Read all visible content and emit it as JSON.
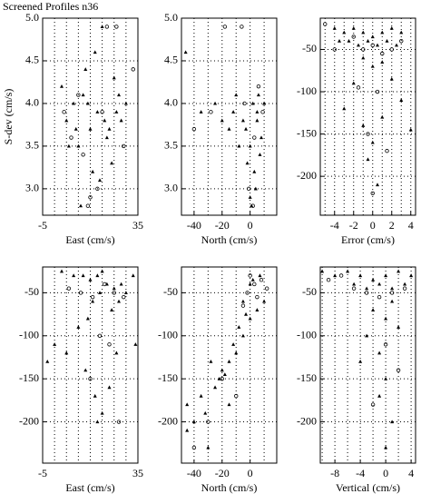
{
  "title": "Screened Profiles n36",
  "chart_data": [
    {
      "type": "scatter",
      "xlabel": "East (cm/s)",
      "ylabel": "S-dev (cm/s)",
      "xlim": [
        -5,
        35
      ],
      "ylim": [
        2.69,
        5.0
      ],
      "xticks": [
        -5,
        35
      ],
      "yticks": [
        {
          "value": 3,
          "label": "3.0"
        },
        {
          "value": 3.5,
          "label": "3.5"
        },
        {
          "value": 4,
          "label": "4.0"
        },
        {
          "value": 4.5,
          "label": "4.5"
        },
        {
          "value": 5,
          "label": "5.0"
        }
      ],
      "xgrid": [
        0,
        5,
        10,
        15,
        20,
        25,
        30
      ],
      "series": [
        {
          "marker": "triangle",
          "color": "#000000",
          "x": [
            3,
            5,
            8,
            10,
            12,
            15,
            18,
            20,
            22,
            25,
            28,
            6,
            9,
            14,
            17,
            21,
            24,
            27,
            30,
            11,
            16,
            19,
            13,
            23,
            26
          ],
          "values": [
            4.2,
            3.8,
            4.0,
            3.5,
            4.1,
            3.7,
            3.9,
            4.9,
            3.6,
            4.3,
            3.8,
            3.5,
            3.7,
            4.0,
            4.6,
            3.8,
            3.3,
            4.1,
            4.0,
            2.8,
            3.2,
            3.1,
            4.4,
            3.7,
            3.9
          ]
        },
        {
          "marker": "circle",
          "color": "#000000",
          "x": [
            4,
            7,
            12,
            15,
            18,
            22,
            26,
            29,
            33,
            20,
            10,
            14
          ],
          "values": [
            3.9,
            3.6,
            3.4,
            2.9,
            3.0,
            4.9,
            4.9,
            3.5,
            4.4,
            3.9,
            4.1,
            2.8
          ]
        }
      ]
    },
    {
      "type": "scatter",
      "xlabel": "North (cm/s)",
      "xlim": [
        -49,
        19
      ],
      "ylim": [
        2.69,
        5.0
      ],
      "xticks": [
        -40,
        -20,
        0
      ],
      "yticks": [
        {
          "value": 3,
          "label": "3.0"
        },
        {
          "value": 3.5,
          "label": "3.5"
        },
        {
          "value": 4,
          "label": "4.0"
        },
        {
          "value": 4.5,
          "label": "4.5"
        },
        {
          "value": 5,
          "label": "5.0"
        }
      ],
      "xgrid": [
        -40,
        -30,
        -20,
        -10,
        0,
        10
      ],
      "series": [
        {
          "marker": "triangle",
          "color": "#000000",
          "x": [
            -46,
            -35,
            -25,
            -15,
            -10,
            -5,
            0,
            2,
            5,
            8,
            -20,
            -8,
            3,
            6,
            -12,
            1,
            4,
            -3,
            7,
            10,
            -2,
            0,
            5
          ],
          "values": [
            4.6,
            3.9,
            4.0,
            3.7,
            4.1,
            3.8,
            3.5,
            4.0,
            3.9,
            3.6,
            3.8,
            3.5,
            3.2,
            4.1,
            3.9,
            2.8,
            3.0,
            3.7,
            3.4,
            4.0,
            3.3,
            2.9,
            3.8
          ]
        },
        {
          "marker": "circle",
          "color": "#000000",
          "x": [
            -40,
            -28,
            -18,
            -6,
            -1,
            3,
            6,
            9,
            -4,
            2
          ],
          "values": [
            3.7,
            3.9,
            4.9,
            4.9,
            3.0,
            3.6,
            4.2,
            3.9,
            4.0,
            2.8
          ]
        }
      ]
    },
    {
      "type": "scatter",
      "xlabel": "Error (cm/s)",
      "xlim": [
        -5.5,
        4.5
      ],
      "ylim": [
        -246,
        -13
      ],
      "xticks": [
        -4,
        -2,
        0,
        2,
        4
      ],
      "yticks": [
        -200,
        -150,
        -100,
        -50
      ],
      "xgrid": [
        -5,
        -4,
        -3,
        -2,
        -1,
        0,
        1,
        2,
        3,
        4
      ],
      "series": [
        {
          "marker": "triangle",
          "color": "#000000",
          "x": [
            -4,
            -3,
            -2,
            -1,
            0,
            1,
            2,
            3,
            -3.5,
            -2.5,
            -1.5,
            -0.5,
            0.5,
            1.5,
            2.5,
            -1,
            0,
            1,
            -2,
            2,
            -3,
            3,
            -1,
            0,
            1,
            -0.5,
            0.5,
            4
          ],
          "values": [
            -25,
            -30,
            -25,
            -30,
            -35,
            -30,
            -25,
            -30,
            -40,
            -40,
            -45,
            -40,
            -45,
            -40,
            -45,
            -60,
            -70,
            -65,
            -90,
            -85,
            -120,
            -110,
            -140,
            -160,
            -130,
            -180,
            -210,
            -145
          ]
        },
        {
          "marker": "circle",
          "color": "#000000",
          "x": [
            -5,
            -2,
            -1,
            0,
            1,
            2,
            3,
            -4,
            -1.5,
            0.5,
            -0.5,
            1.5,
            0
          ],
          "values": [
            -20,
            -35,
            -50,
            -45,
            -55,
            -50,
            -40,
            -50,
            -95,
            -100,
            -150,
            -170,
            -220
          ]
        }
      ]
    },
    {
      "type": "scatter",
      "xlabel": "East (cm/s)",
      "xlim": [
        -5,
        35
      ],
      "ylim": [
        -248,
        -20
      ],
      "xticks": [
        -5,
        35
      ],
      "yticks": [
        -200,
        -150,
        -100,
        -50
      ],
      "xgrid": [
        0,
        5,
        10,
        15,
        20,
        25,
        30
      ],
      "series": [
        {
          "marker": "triangle",
          "color": "#000000",
          "x": [
            3,
            8,
            12,
            15,
            18,
            20,
            22,
            25,
            28,
            30,
            33,
            -3,
            0,
            5,
            10,
            14,
            16,
            19,
            24,
            27,
            17,
            20,
            23,
            13,
            18,
            26,
            34
          ],
          "values": [
            -25,
            -30,
            -30,
            -35,
            -30,
            -25,
            -40,
            -45,
            -40,
            -50,
            -30,
            -130,
            -110,
            -120,
            -90,
            -80,
            -60,
            -50,
            -70,
            -60,
            -170,
            -190,
            -160,
            -140,
            -200,
            -120,
            -110
          ]
        },
        {
          "marker": "circle",
          "color": "#000000",
          "x": [
            6,
            11,
            16,
            21,
            25,
            29,
            19,
            23,
            15,
            27
          ],
          "values": [
            -45,
            -50,
            -55,
            -40,
            -50,
            -55,
            -100,
            -110,
            -150,
            -200
          ]
        }
      ]
    },
    {
      "type": "scatter",
      "xlabel": "North (cm/s)",
      "xlim": [
        -49,
        19
      ],
      "ylim": [
        -248,
        -20
      ],
      "xticks": [
        -40,
        -20,
        0
      ],
      "yticks": [
        -200,
        -150,
        -100,
        -50
      ],
      "xgrid": [
        -40,
        -30,
        -20,
        -10,
        0,
        10
      ],
      "series": [
        {
          "marker": "triangle",
          "color": "#000000",
          "x": [
            -45,
            -40,
            -32,
            -25,
            -20,
            -15,
            -10,
            -5,
            0,
            5,
            10,
            -12,
            -8,
            -3,
            2,
            7,
            -18,
            -22,
            -28,
            -35,
            -45,
            -30,
            -15,
            -5,
            0
          ],
          "values": [
            -180,
            -200,
            -190,
            -160,
            -140,
            -130,
            -120,
            -100,
            -80,
            -70,
            -60,
            -110,
            -90,
            -75,
            -35,
            -30,
            -145,
            -150,
            -130,
            -170,
            -210,
            -230,
            -180,
            -60,
            -40
          ]
        },
        {
          "marker": "circle",
          "color": "#000000",
          "x": [
            -40,
            -30,
            -20,
            -10,
            -2,
            3,
            8,
            12,
            5,
            0,
            -5
          ],
          "values": [
            -230,
            -200,
            -150,
            -170,
            -50,
            -40,
            -35,
            -45,
            -55,
            -30,
            -65
          ]
        }
      ]
    },
    {
      "type": "scatter",
      "xlabel": "Vertical (cm/s)",
      "xlim": [
        -10.3,
        4.7
      ],
      "ylim": [
        -248,
        -20
      ],
      "xticks": [
        -8,
        -4,
        0,
        4
      ],
      "yticks": [
        -200,
        -150,
        -100,
        -50
      ],
      "xgrid": [
        -10,
        -8,
        -6,
        -4,
        -2,
        0,
        2,
        4
      ],
      "series": [
        {
          "marker": "triangle",
          "color": "#000000",
          "x": [
            -10,
            -8,
            -6,
            -4,
            -2,
            0,
            2,
            4,
            -5,
            -3,
            -1,
            1,
            3,
            -2,
            0,
            1,
            -3,
            -1,
            0,
            2,
            -4,
            -1,
            1,
            0
          ],
          "values": [
            -25,
            -30,
            -25,
            -30,
            -35,
            -30,
            -25,
            -30,
            -40,
            -45,
            -40,
            -45,
            -40,
            -70,
            -80,
            -60,
            -100,
            -120,
            -150,
            -90,
            -130,
            -170,
            -200,
            -230
          ]
        },
        {
          "marker": "circle",
          "color": "#000000",
          "x": [
            -9,
            -7,
            -5,
            -3,
            -1,
            1,
            3,
            0,
            -2,
            2
          ],
          "values": [
            -35,
            -30,
            -45,
            -50,
            -55,
            -50,
            -45,
            -110,
            -180,
            -140
          ]
        }
      ]
    }
  ]
}
